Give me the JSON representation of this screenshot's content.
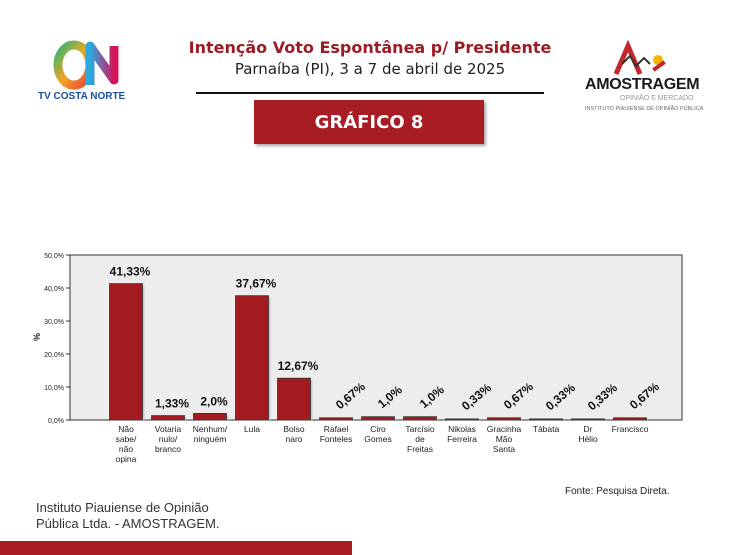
{
  "header": {
    "title": "Intenção Voto Espontânea p/ Presidente",
    "subtitle": "Parnaíba (PI), 3 a 7 de abril de 2025",
    "chart_label": "GRÁFICO 8"
  },
  "logos": {
    "tv_name": "TV COSTA NORTE",
    "amostragem_name": "AMOSTRAGEM",
    "amostragem_tagline": "OPINIÃO E MERCADO",
    "amostragem_institute": "INSTITUTO PIAUIENSE DE OPINIÃO PÚBLICA"
  },
  "footer": {
    "source": "Fonte: Pesquisa Direta.",
    "institute_line1": "Instituto Piauiense de Opinião",
    "institute_line2": "Pública Ltda. - AMOSTRAGEM."
  },
  "colors": {
    "accent": "#a81c24",
    "bar": "#a31a21",
    "plot_bg": "#ededed"
  },
  "chart_data": {
    "type": "bar",
    "ylabel": "%",
    "ylim": [
      0,
      50
    ],
    "yticks": [
      "0,0%",
      "10,0%",
      "20,0%",
      "30,0%",
      "40,0%",
      "50,0%"
    ],
    "grid": false,
    "categories": [
      [
        "Não",
        "sabe/",
        "não",
        "opina"
      ],
      [
        "Votaria",
        "nulo/",
        "branco"
      ],
      [
        "Nenhum/",
        "ninguém"
      ],
      [
        "Lula"
      ],
      [
        "Bolso",
        "naro"
      ],
      [
        "Rafael",
        "Fonteles"
      ],
      [
        "Ciro",
        "Gomes"
      ],
      [
        "Tarcísio",
        "de",
        "Freitas"
      ],
      [
        "Nikolas",
        "Ferreira"
      ],
      [
        "Gracinha",
        "Mão",
        "Santa"
      ],
      [
        "Tábata"
      ],
      [
        "Dr",
        "Hélio"
      ],
      [
        "Francisco"
      ]
    ],
    "values": [
      41.33,
      1.33,
      2.0,
      37.67,
      12.67,
      0.67,
      1.0,
      1.0,
      0.33,
      0.67,
      0.33,
      0.33,
      0.67
    ],
    "labels": [
      "41,33%",
      "1,33%",
      "2,0%",
      "37,67%",
      "12,67%",
      "0,67%",
      "1,0%",
      "1,0%",
      "0,33%",
      "0,67%",
      "0,33%",
      "0,33%",
      "0,67%"
    ]
  }
}
